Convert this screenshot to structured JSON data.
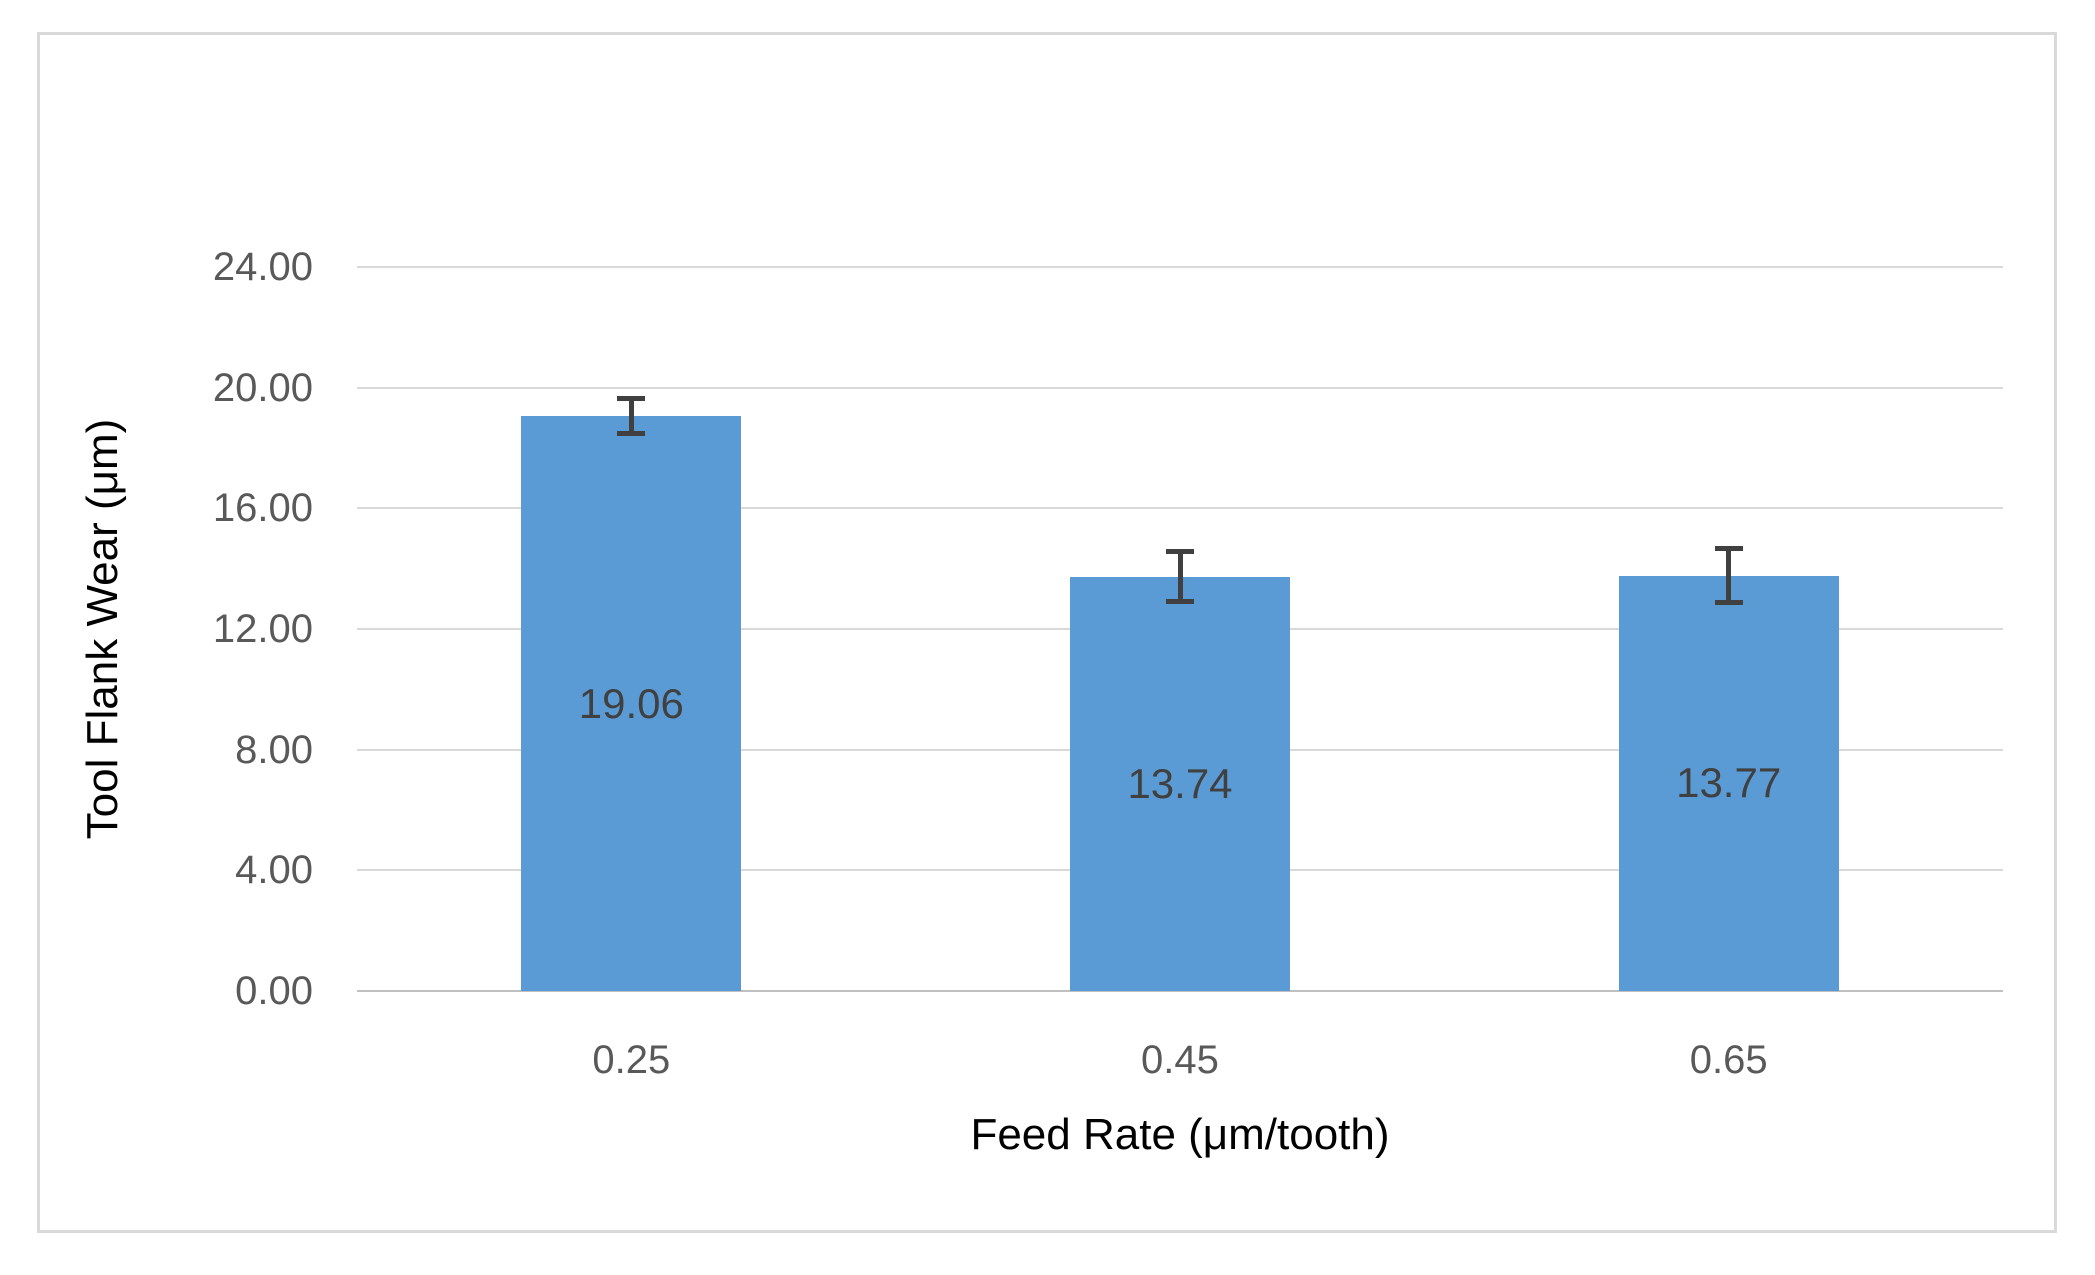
{
  "chart_data": {
    "type": "bar",
    "title": "",
    "categories": [
      "0.25",
      "0.45",
      "0.65"
    ],
    "values": [
      19.06,
      13.74,
      13.77
    ],
    "data_labels": [
      "19.06",
      "13.74",
      "13.77"
    ],
    "error_bars": [
      0.6,
      0.85,
      0.9
    ],
    "xlabel": "Feed Rate (μm/tooth)",
    "ylabel": "Tool Flank Wear (μm)",
    "ylim": [
      0,
      24
    ],
    "yticks": [
      "0.00",
      "4.00",
      "8.00",
      "12.00",
      "16.00",
      "20.00",
      "24.00"
    ],
    "grid": true,
    "legend": false,
    "colors": {
      "bar": "#5b9bd5",
      "error_bar": "#404040",
      "gridline": "#d9d9d9",
      "axis_line": "#bfbfbf",
      "tick_text": "#595959",
      "data_label_text": "#404040",
      "frame_border": "#d9d9d9",
      "background": "#ffffff"
    }
  }
}
